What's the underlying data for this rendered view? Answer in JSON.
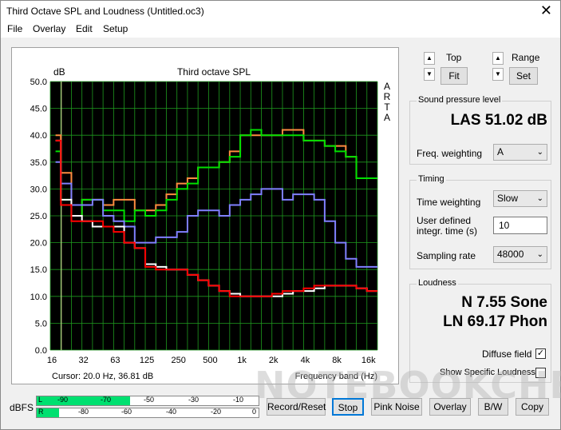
{
  "window": {
    "title": "Third Octave SPL and Loudness (Untitled.oc3)",
    "close_glyph": "✕"
  },
  "menu": [
    "File",
    "Overlay",
    "Edit",
    "Setup"
  ],
  "chart_data": {
    "type": "line",
    "title": "Third octave SPL",
    "ylabel": "dB",
    "xlabel": "Frequency band (Hz)",
    "ylim": [
      0,
      50
    ],
    "yticks": [
      "50.0",
      "45.0",
      "40.0",
      "35.0",
      "30.0",
      "25.0",
      "20.0",
      "15.0",
      "10.0",
      "5.0",
      "0.0"
    ],
    "xticks": [
      "16",
      "32",
      "63",
      "125",
      "250",
      "500",
      "1k",
      "2k",
      "4k",
      "8k",
      "16k"
    ],
    "x_band_count": 31,
    "side_label": [
      "A",
      "R",
      "T",
      "A"
    ],
    "cursor": "Cursor:    20.0 Hz, 36.81 dB",
    "grid": true,
    "background": "#000000",
    "grid_color": "#1f9a1f",
    "series": [
      {
        "color": "#ff8c40",
        "values": [
          40,
          33,
          25,
          28,
          28,
          27,
          28,
          28,
          26,
          26,
          27,
          29,
          31,
          32,
          34,
          34,
          35,
          37,
          40,
          40,
          40,
          40,
          41,
          41,
          39,
          39,
          38,
          38,
          36,
          32,
          32
        ]
      },
      {
        "color": "#00e000",
        "values": [
          37,
          28,
          25,
          28,
          28,
          26,
          26,
          24,
          26,
          25,
          26,
          28,
          30,
          31,
          34,
          34,
          35,
          36,
          40,
          41,
          40,
          40,
          40,
          40,
          39,
          39,
          38,
          37,
          36,
          32,
          32
        ]
      },
      {
        "color": "#8080ff",
        "values": [
          35,
          31,
          27,
          27,
          28,
          25,
          24,
          23,
          20,
          20,
          21,
          21,
          22,
          25,
          26,
          26,
          25,
          27,
          28,
          29,
          30,
          30,
          28,
          29,
          29,
          28,
          24,
          20,
          17,
          15.5,
          15.5
        ]
      },
      {
        "color": "#ffffff",
        "values": [
          39,
          28,
          25,
          24,
          23,
          23,
          23,
          20,
          19,
          16,
          15.5,
          15,
          15,
          14,
          13,
          12,
          11,
          10.5,
          10,
          10,
          10,
          10,
          10.5,
          11,
          11,
          11.5,
          12,
          12,
          12,
          11.5,
          11
        ]
      },
      {
        "color": "#ff0000",
        "values": [
          39,
          27,
          24,
          24,
          24,
          23,
          22,
          20,
          19,
          15.5,
          15,
          15,
          15,
          14,
          13,
          12,
          11,
          10,
          10,
          10,
          10,
          10.5,
          11,
          11,
          11.5,
          12,
          12,
          12,
          12,
          11.5,
          11
        ]
      }
    ]
  },
  "controls": {
    "top_label": "Top",
    "fit_label": "Fit",
    "range_label": "Range",
    "set_label": "Set",
    "spin_up": "▲",
    "spin_down": "▼"
  },
  "spl": {
    "title": "Sound pressure level",
    "value": "LAS 51.02 dB",
    "freq_weighting_label": "Freq. weighting",
    "freq_weighting_value": "A"
  },
  "timing": {
    "title": "Timing",
    "time_weighting_label": "Time weighting",
    "time_weighting_value": "Slow",
    "user_defined_label_1": "User defined",
    "user_defined_label_2": "integr. time (s)",
    "integr_time_value": "10",
    "sampling_rate_label": "Sampling rate",
    "sampling_rate_value": "48000"
  },
  "loudness": {
    "title": "Loudness",
    "sone": "N 7.55 Sone",
    "phon": "LN 69.17 Phon",
    "diffuse_label": "Diffuse field",
    "diffuse_checked": "✓",
    "specific_label": "Show Specific Loudness"
  },
  "meter": {
    "label": "dBFS",
    "L": "L",
    "R": "R",
    "top_ticks": [
      "-90",
      "-70",
      "-50",
      "-30",
      "-10"
    ],
    "bottom_ticks": [
      "-80",
      "-60",
      "-40",
      "-20",
      "0"
    ],
    "level_L": 0.42,
    "level_R": 0.1
  },
  "buttons": {
    "record": "Record/Reset",
    "stop": "Stop",
    "pink_noise": "Pink Noise",
    "overlay": "Overlay",
    "bw": "B/W",
    "copy": "Copy"
  },
  "watermark": "NOTEBOOKCHECK"
}
